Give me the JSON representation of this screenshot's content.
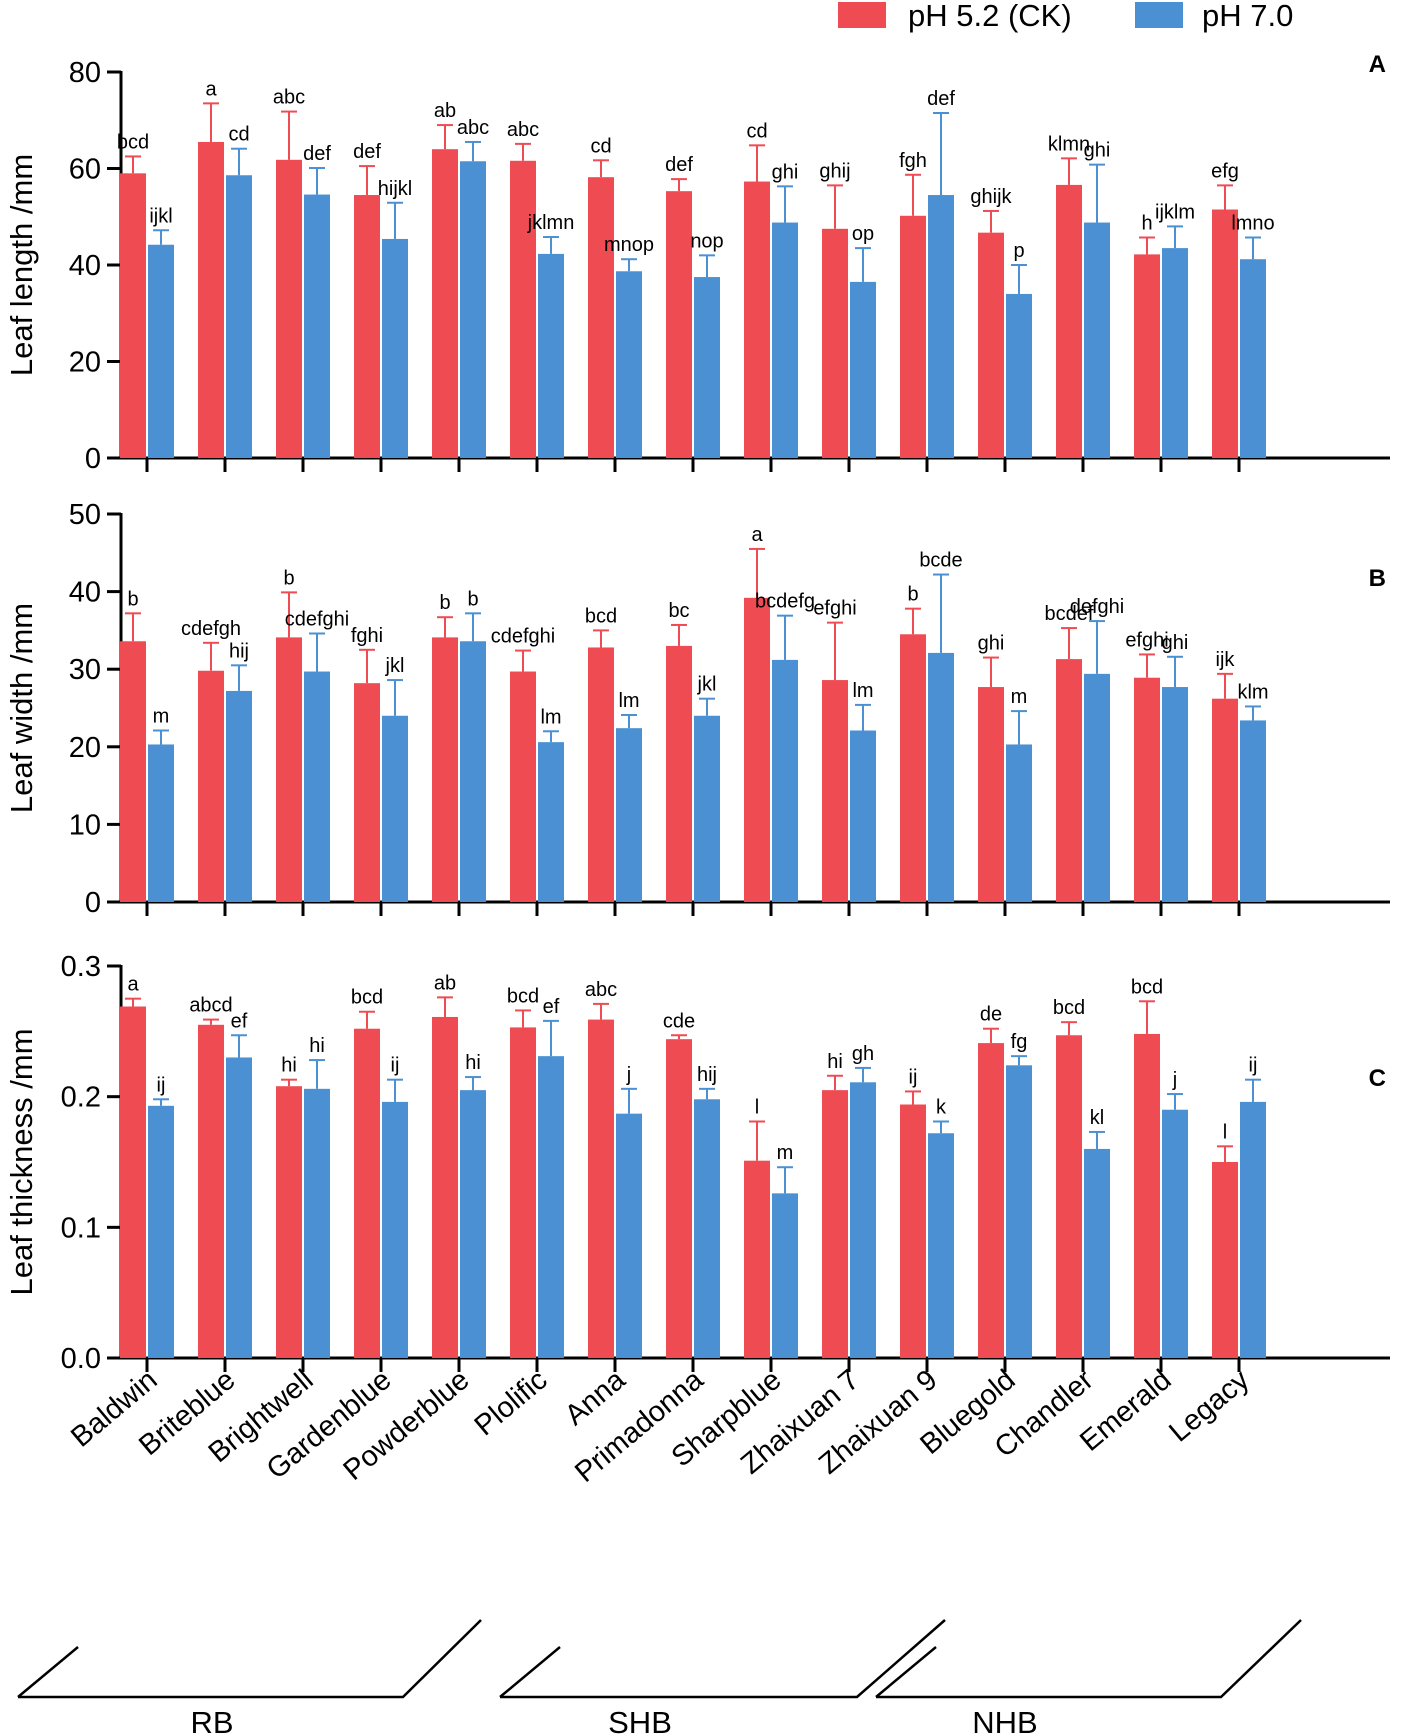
{
  "colors": {
    "ck": "#ef4b53",
    "ph7": "#4a90d3",
    "axis": "#000000"
  },
  "legend": [
    {
      "label": "pH 5.2 (CK)",
      "color": "#ef4b53"
    },
    {
      "label": "pH 7.0",
      "color": "#4a90d3"
    }
  ],
  "categories": [
    "Baldwin",
    "Briteblue",
    "Brightwell",
    "Gardenblue",
    "Powderblue",
    "Plolific",
    "Anna",
    "Primadonna",
    "Sharpblue",
    "Zhaixuan 7",
    "Zhaixuan 9",
    "Bluegold",
    "Chandler",
    "Emerald",
    "Legacy"
  ],
  "groups": [
    {
      "label": "RB",
      "start": 0,
      "end": 4
    },
    {
      "label": "SHB",
      "start": 5,
      "end": 9
    },
    {
      "label": "NHB",
      "start": 10,
      "end": 14
    }
  ],
  "chart_data": [
    {
      "type": "bar",
      "panel": "A",
      "ylabel": "Leaf length /mm",
      "ylim": [
        0,
        80
      ],
      "yticks": [
        0,
        20,
        40,
        60,
        80
      ],
      "series": [
        {
          "name": "pH 5.2 (CK)",
          "values": [
            59,
            65.5,
            61.8,
            54.5,
            64,
            61.6,
            58.2,
            55.3,
            57.3,
            47.5,
            50.2,
            46.7,
            56.6,
            42.2,
            51.5
          ],
          "errors": [
            3.5,
            8,
            10,
            6,
            5,
            3.5,
            3.5,
            2.5,
            7.5,
            9,
            8.5,
            4.5,
            5.5,
            3.5,
            5
          ],
          "letters": [
            "bcd",
            "a",
            "abc",
            "def",
            "ab",
            "abc",
            "cd",
            "def",
            "cd",
            "ghij",
            "fgh",
            "ghijk",
            "klmn",
            "h",
            "efg"
          ]
        },
        {
          "name": "pH 7.0",
          "values": [
            44.2,
            58.6,
            54.6,
            45.4,
            61.5,
            42.3,
            38.7,
            37.5,
            48.8,
            36.5,
            54.5,
            34,
            48.8,
            43.5,
            41.2
          ],
          "errors": [
            3,
            5.5,
            5.5,
            7.5,
            4,
            3.5,
            2.5,
            4.5,
            7.5,
            7,
            17,
            6,
            12,
            4.5,
            4.5
          ],
          "letters": [
            "ijkl",
            "cd",
            "def",
            "hijkl",
            "abc",
            "jklmn",
            "mnop",
            "nop",
            "ghi",
            "op",
            "def",
            "p",
            "ghi",
            "ijklm",
            "lmno"
          ]
        }
      ]
    },
    {
      "type": "bar",
      "panel": "B",
      "ylabel": "Leaf  width /mm",
      "ylim": [
        0,
        50
      ],
      "yticks": [
        0,
        10,
        20,
        30,
        40,
        50
      ],
      "series": [
        {
          "name": "pH 5.2 (CK)",
          "values": [
            33.6,
            29.8,
            34.1,
            28.2,
            34.1,
            29.7,
            32.8,
            33,
            39.2,
            28.6,
            34.5,
            27.7,
            31.3,
            28.9,
            26.2
          ],
          "errors": [
            3.6,
            3.6,
            5.8,
            4.3,
            2.6,
            2.7,
            2.2,
            2.7,
            6.3,
            7.4,
            3.3,
            3.8,
            4,
            3,
            3.2
          ],
          "letters": [
            "b",
            "cdefgh",
            "b",
            "fghi",
            "b",
            "cdefghi",
            "bcd",
            "bc",
            "a",
            "efghi",
            "b",
            "ghi",
            "bcdef",
            "efghi",
            "ijk"
          ]
        },
        {
          "name": "pH 7.0",
          "values": [
            20.3,
            27.2,
            29.7,
            24,
            33.6,
            20.6,
            22.4,
            24,
            31.2,
            22.1,
            32.1,
            20.3,
            29.4,
            27.7,
            23.4
          ],
          "errors": [
            1.8,
            3.3,
            4.9,
            4.6,
            3.6,
            1.4,
            1.7,
            2.2,
            5.7,
            3.3,
            10.1,
            4.3,
            6.8,
            3.9,
            1.8
          ],
          "letters": [
            "m",
            "hij",
            "cdefghi",
            "jkl",
            "b",
            "lm",
            "lm",
            "jkl",
            "bcdefg",
            "lm",
            "bcde",
            "m",
            "defghi",
            "ghi",
            "klm"
          ]
        }
      ]
    },
    {
      "type": "bar",
      "panel": "C",
      "ylabel": "Leaf  thickness /mm",
      "ylim": [
        0,
        0.3
      ],
      "yticks": [
        0.0,
        0.1,
        0.2,
        0.3
      ],
      "series": [
        {
          "name": "pH 5.2 (CK)",
          "values": [
            0.269,
            0.255,
            0.208,
            0.252,
            0.261,
            0.253,
            0.259,
            0.244,
            0.151,
            0.205,
            0.194,
            0.241,
            0.247,
            0.248,
            0.15
          ],
          "errors": [
            0.006,
            0.004,
            0.005,
            0.013,
            0.015,
            0.013,
            0.012,
            0.003,
            0.03,
            0.011,
            0.01,
            0.011,
            0.01,
            0.025,
            0.012
          ],
          "letters": [
            "a",
            "abcd",
            "hi",
            "bcd",
            "ab",
            "bcd",
            "abc",
            "cde",
            "l",
            "hi",
            "ij",
            "de",
            "bcd",
            "bcd",
            "l"
          ]
        },
        {
          "name": "pH 7.0",
          "values": [
            0.193,
            0.23,
            0.206,
            0.196,
            0.205,
            0.231,
            0.187,
            0.198,
            0.126,
            0.211,
            0.172,
            0.224,
            0.16,
            0.19,
            0.196
          ],
          "errors": [
            0.005,
            0.017,
            0.022,
            0.017,
            0.01,
            0.027,
            0.019,
            0.008,
            0.02,
            0.011,
            0.009,
            0.007,
            0.013,
            0.012,
            0.017
          ],
          "letters": [
            "ij",
            "ef",
            "hi",
            "ij",
            "hi",
            "ef",
            "j",
            "hij",
            "m",
            "gh",
            "k",
            "fg",
            "kl",
            "j",
            "ij"
          ]
        }
      ]
    }
  ]
}
